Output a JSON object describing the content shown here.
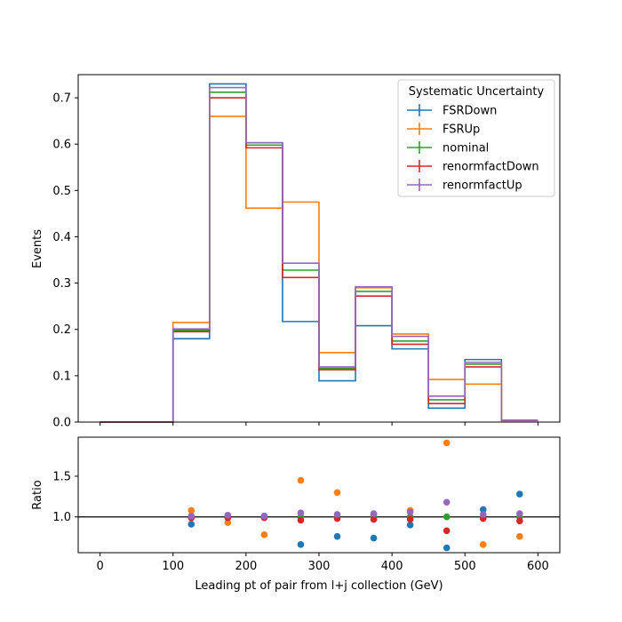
{
  "chart_data": [
    {
      "type": "line",
      "subtype": "step-histogram",
      "title": "",
      "xlabel": "",
      "ylabel": "Events",
      "xlim": [
        -30,
        630
      ],
      "ylim": [
        0,
        0.75
      ],
      "bin_edges": [
        0,
        100,
        150,
        200,
        250,
        300,
        350,
        400,
        450,
        500,
        550,
        600
      ],
      "xticks": [
        "0",
        "100",
        "200",
        "300",
        "400",
        "500",
        "600"
      ],
      "yticks": [
        "0.0",
        "0.1",
        "0.2",
        "0.3",
        "0.4",
        "0.5",
        "0.6",
        "0.7"
      ],
      "grid": false,
      "legend": {
        "title": "Systematic Uncertainty",
        "placement": "top-right"
      },
      "series": [
        {
          "name": "FSRDown",
          "color": "#1f77b4",
          "values": [
            0.0,
            0.18,
            0.73,
            0.603,
            0.217,
            0.089,
            0.208,
            0.158,
            0.03,
            0.135,
            0.004
          ]
        },
        {
          "name": "FSRUp",
          "color": "#ff7f0e",
          "values": [
            0.0,
            0.215,
            0.66,
            0.462,
            0.475,
            0.15,
            0.29,
            0.19,
            0.092,
            0.082,
            0.003
          ]
        },
        {
          "name": "nominal",
          "color": "#2ca02c",
          "values": [
            0.0,
            0.198,
            0.712,
            0.598,
            0.328,
            0.116,
            0.282,
            0.175,
            0.048,
            0.125,
            0.004
          ]
        },
        {
          "name": "renormfactDown",
          "color": "#d62728",
          "values": [
            0.0,
            0.195,
            0.7,
            0.592,
            0.312,
            0.113,
            0.272,
            0.168,
            0.04,
            0.119,
            0.004
          ]
        },
        {
          "name": "renormfactUp",
          "color": "#9467bd",
          "values": [
            0.0,
            0.201,
            0.722,
            0.603,
            0.343,
            0.119,
            0.292,
            0.185,
            0.056,
            0.129,
            0.004
          ]
        }
      ]
    },
    {
      "type": "scatter",
      "title": "",
      "xlabel": "Leading pt of pair from l+j collection (GeV)",
      "ylabel": "Ratio",
      "xlim": [
        -30,
        630
      ],
      "ylim": [
        0.56,
        1.98
      ],
      "xticks": [
        "0",
        "100",
        "200",
        "300",
        "400",
        "500",
        "600"
      ],
      "yticks": [
        "1.0",
        "1.5"
      ],
      "reference_line": 1.0,
      "grid": false,
      "x": [
        125,
        175,
        225,
        275,
        325,
        375,
        425,
        475,
        525,
        575
      ],
      "series": [
        {
          "name": "FSRDown",
          "color": "#1f77b4",
          "values": [
            0.91,
            1.02,
            1.01,
            0.66,
            0.76,
            0.74,
            0.9,
            0.62,
            1.09,
            1.28
          ]
        },
        {
          "name": "FSRUp",
          "color": "#ff7f0e",
          "values": [
            1.08,
            0.93,
            0.78,
            1.45,
            1.3,
            1.03,
            1.08,
            1.91,
            0.66,
            0.76
          ]
        },
        {
          "name": "nominal",
          "color": "#2ca02c",
          "values": [
            1.0,
            1.0,
            1.0,
            1.0,
            1.0,
            1.0,
            1.0,
            1.0,
            1.0,
            1.0
          ]
        },
        {
          "name": "renormfactDown",
          "color": "#d62728",
          "values": [
            0.99,
            0.99,
            0.99,
            0.96,
            0.98,
            0.97,
            0.97,
            0.83,
            0.98,
            0.95
          ]
        },
        {
          "name": "renormfactUp",
          "color": "#9467bd",
          "values": [
            1.01,
            1.02,
            1.01,
            1.05,
            1.03,
            1.04,
            1.06,
            1.18,
            1.03,
            1.04
          ]
        }
      ]
    }
  ]
}
